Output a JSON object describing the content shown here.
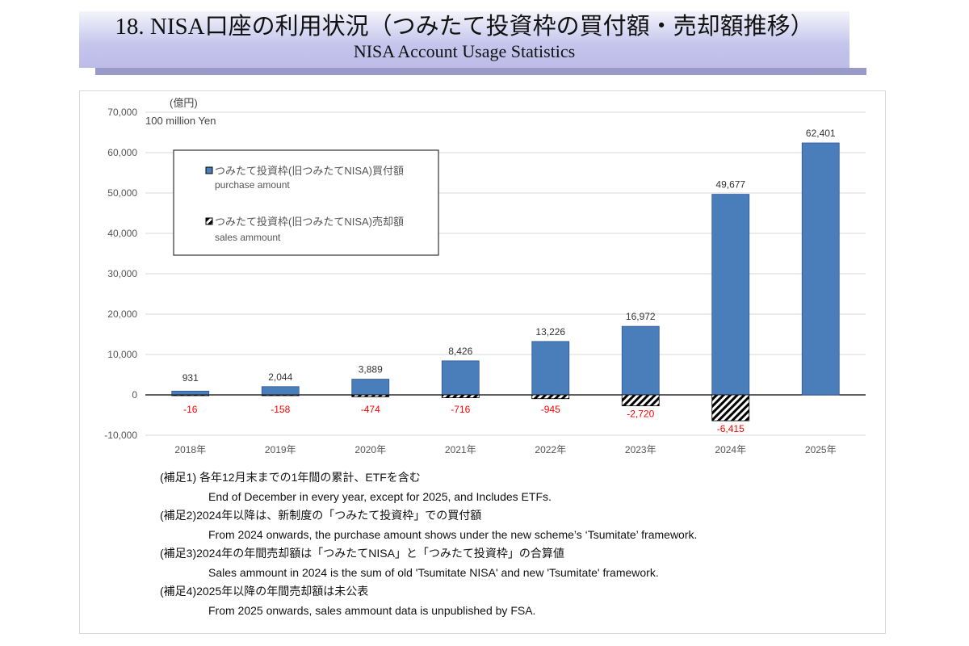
{
  "header": {
    "title": "18. NISA口座の利用状況（つみたて投資枠の買付額・売却額推移）",
    "subtitle": "NISA Account Usage Statistics"
  },
  "chart_data": {
    "type": "bar",
    "ylabel": "(億円)",
    "ylabel_en": "100 million Yen",
    "ylim": [
      -10000,
      70000
    ],
    "yticks": [
      -10000,
      0,
      10000,
      20000,
      30000,
      40000,
      50000,
      60000,
      70000
    ],
    "ytick_labels": [
      "-10,000",
      "0",
      "10,000",
      "20,000",
      "30,000",
      "40,000",
      "50,000",
      "60,000",
      "70,000"
    ],
    "grid": true,
    "categories": [
      "2018年",
      "2019年",
      "2020年",
      "2021年",
      "2022年",
      "2023年",
      "2024年",
      "2025年"
    ],
    "series": [
      {
        "name": "つみたて投資枠(旧つみたてNISA)買付額",
        "name_en": "purchase amount",
        "color": "#4a7ebb",
        "pattern": "solid",
        "values": [
          931,
          2044,
          3889,
          8426,
          13226,
          16972,
          49677,
          62401
        ],
        "labels": [
          "931",
          "2,044",
          "3,889",
          "8,426",
          "13,226",
          "16,972",
          "49,677",
          "62,401"
        ]
      },
      {
        "name": "つみたて投資枠(旧つみたてNISA)売却額",
        "name_en": "sales ammount",
        "color": "#000000",
        "pattern": "hatched",
        "label_color": "#ff0000",
        "values": [
          -16,
          -158,
          -474,
          -716,
          -945,
          -2720,
          -6415,
          null
        ],
        "labels": [
          "-16",
          "-158",
          "-474",
          "-716",
          "-945",
          "-2,720",
          "-6,415",
          null
        ]
      }
    ],
    "legend": "top-left"
  },
  "notes": [
    {
      "jp": "(補足1) 各年12月末までの1年間の累計、ETFを含む",
      "en": "End of December in every year, except for 2025, and Includes ETFs."
    },
    {
      "jp": "(補足2)2024年以降は、新制度の「つみたて投資枠」での買付額",
      "en": "From 2024 onwards, the purchase amount shows under the new scheme’s ‘Tsumitate’ framework."
    },
    {
      "jp": "(補足3)2024年の年間売却額は「つみたてNISA」と「つみたて投資枠」の合算値",
      "en": "Sales ammount in 2024 is the sum of old 'Tsumitate NISA' and new 'Tsumitate' framework."
    },
    {
      "jp": "(補足4)2025年以降の年間売却額は未公表",
      "en": "From 2025 onwards, sales ammount data is unpublished by FSA."
    }
  ]
}
